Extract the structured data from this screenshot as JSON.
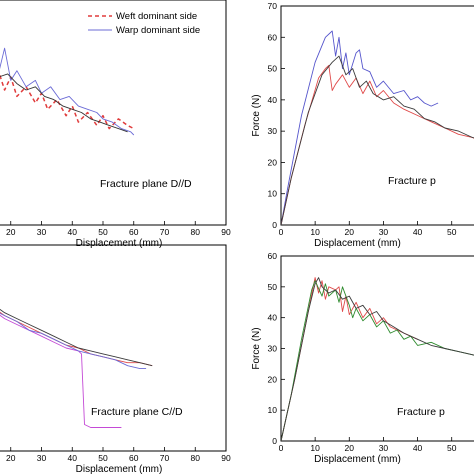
{
  "chart_data": [
    {
      "type": "line",
      "panel": "top-left",
      "annotation": "Fracture plane D//D",
      "xlabel": "Displacement (mm)",
      "ylabel": "",
      "xlim": [
        10,
        90
      ],
      "ylim": [
        0,
        70
      ],
      "x_ticks": [
        "20",
        "30",
        "40",
        "50",
        "60",
        "70",
        "80",
        "90"
      ],
      "y_ticks": [],
      "legend_position": "top-right",
      "series": [
        {
          "name": "Weft dominant side",
          "color": "#e03b3b",
          "dash": "dashed",
          "x": [
            10,
            12,
            14,
            16,
            18,
            20,
            22,
            25,
            28,
            30,
            32,
            35,
            38,
            40,
            42,
            45,
            48,
            50,
            52,
            55,
            58,
            60
          ],
          "y": [
            50,
            47,
            44,
            48,
            42,
            46,
            40,
            43,
            38,
            41,
            36,
            39,
            34,
            37,
            32,
            35,
            31,
            34,
            30,
            33,
            31,
            30
          ]
        },
        {
          "name": "Warp dominant side",
          "color": "#6b6bd6",
          "dash": "solid",
          "x": [
            10,
            12,
            14,
            16,
            18,
            20,
            22,
            25,
            28,
            30,
            33,
            36,
            39,
            42,
            45,
            48,
            50,
            53,
            56,
            59,
            60
          ],
          "y": [
            52,
            49,
            51,
            47,
            55,
            45,
            48,
            43,
            45,
            41,
            43,
            39,
            40,
            37,
            36,
            35,
            33,
            32,
            30,
            29,
            28
          ]
        },
        {
          "name": "",
          "color": "#333333",
          "dash": "solid",
          "x": [
            10,
            13,
            16,
            19,
            22,
            25,
            28,
            31,
            34,
            37,
            40,
            43,
            46,
            49,
            52,
            55,
            58
          ],
          "y": [
            51,
            48,
            46,
            47,
            44,
            42,
            43,
            40,
            39,
            37,
            36,
            35,
            33,
            32,
            31,
            30,
            29
          ]
        }
      ]
    },
    {
      "type": "line",
      "panel": "top-right",
      "annotation": "Fracture p",
      "xlabel": "Displacement (mm)",
      "ylabel": "Force (N)",
      "xlim": [
        0,
        70
      ],
      "ylim": [
        0,
        70
      ],
      "x_ticks": [
        "0",
        "10",
        "20",
        "30",
        "40",
        "50",
        "60"
      ],
      "y_ticks": [
        "0",
        "10",
        "20",
        "30",
        "40",
        "50",
        "60",
        "70"
      ],
      "series": [
        {
          "name": "",
          "color": "#5555cc",
          "x": [
            0,
            2,
            6,
            10,
            13,
            15,
            16,
            17,
            18,
            19,
            20,
            22,
            23,
            24,
            26,
            28,
            30,
            33,
            36,
            38,
            40,
            42,
            44,
            46
          ],
          "y": [
            0,
            12,
            35,
            52,
            60,
            62,
            54,
            60,
            50,
            55,
            48,
            55,
            56,
            50,
            49,
            44,
            46,
            42,
            43,
            40,
            41,
            39,
            38,
            39
          ]
        },
        {
          "name": "",
          "color": "#e04a4a",
          "x": [
            0,
            3,
            7,
            11,
            13,
            14,
            15,
            16,
            18,
            20,
            22,
            24,
            26,
            28,
            30,
            33,
            36,
            40,
            44,
            48,
            52,
            56,
            60
          ],
          "y": [
            0,
            15,
            32,
            47,
            50,
            51,
            43,
            45,
            48,
            44,
            47,
            42,
            46,
            41,
            43,
            39,
            37,
            35,
            33,
            31,
            29,
            28,
            26
          ]
        },
        {
          "name": "",
          "color": "#3c3c3c",
          "x": [
            0,
            3,
            8,
            12,
            15,
            17,
            19,
            21,
            23,
            25,
            27,
            30,
            33,
            36,
            39,
            42,
            45,
            48,
            52,
            56,
            60
          ],
          "y": [
            0,
            15,
            36,
            48,
            52,
            54,
            48,
            50,
            44,
            46,
            42,
            40,
            41,
            38,
            37,
            34,
            33,
            31,
            30,
            28,
            27
          ]
        }
      ]
    },
    {
      "type": "line",
      "panel": "bottom-left",
      "annotation": "Fracture plane C//D",
      "xlabel": "Displacement (mm)",
      "ylabel": "",
      "xlim": [
        10,
        90
      ],
      "ylim": [
        0,
        70
      ],
      "x_ticks": [
        "20",
        "30",
        "40",
        "50",
        "60",
        "70",
        "80",
        "90"
      ],
      "y_ticks": [],
      "series": [
        {
          "name": "",
          "color": "#c44ad6",
          "x": [
            10,
            14,
            18,
            22,
            26,
            30,
            34,
            38,
            42,
            43,
            44,
            46,
            50,
            54,
            56
          ],
          "y": [
            50,
            48,
            45,
            43,
            41,
            39,
            37,
            35,
            34,
            33,
            9,
            8,
            8,
            8,
            8
          ]
        },
        {
          "name": "",
          "color": "#e04a4a",
          "x": [
            10,
            14,
            18,
            22,
            26,
            30,
            34,
            38,
            42,
            46,
            50,
            54,
            58,
            62,
            66
          ],
          "y": [
            51,
            49,
            46,
            44,
            42,
            40,
            38,
            36,
            35,
            33,
            32,
            31,
            30,
            30,
            29
          ]
        },
        {
          "name": "",
          "color": "#3c3c3c",
          "x": [
            10,
            14,
            18,
            22,
            26,
            30,
            34,
            38,
            42,
            46,
            50,
            54,
            58,
            62,
            66
          ],
          "y": [
            52,
            50,
            47,
            45,
            43,
            41,
            39,
            37,
            35,
            34,
            33,
            32,
            31,
            30,
            29
          ]
        },
        {
          "name": "",
          "color": "#6b6bd6",
          "x": [
            10,
            14,
            18,
            22,
            26,
            30,
            34,
            38,
            42,
            46,
            50,
            54,
            58,
            62,
            64
          ],
          "y": [
            49,
            48,
            46,
            44,
            41,
            40,
            38,
            36,
            34,
            33,
            32,
            31,
            29,
            28,
            28
          ]
        }
      ]
    },
    {
      "type": "line",
      "panel": "bottom-right",
      "annotation": "Fracture p",
      "xlabel": "Displacement (mm)",
      "ylabel": "Force (N)",
      "xlim": [
        0,
        70
      ],
      "ylim": [
        0,
        60
      ],
      "x_ticks": [
        "0",
        "10",
        "20",
        "30",
        "40",
        "50",
        "60"
      ],
      "y_ticks": [
        "0",
        "10",
        "20",
        "30",
        "40",
        "50",
        "60"
      ],
      "series": [
        {
          "name": "",
          "color": "#e04a4a",
          "x": [
            0,
            4,
            8,
            10,
            11,
            12,
            13,
            14,
            16,
            17,
            18,
            19,
            20,
            22,
            24,
            26,
            28,
            30,
            32,
            34,
            36,
            38,
            40
          ],
          "y": [
            0,
            20,
            42,
            53,
            48,
            52,
            46,
            50,
            49,
            50,
            42,
            47,
            41,
            45,
            40,
            43,
            38,
            40,
            37,
            36,
            35,
            34,
            33
          ]
        },
        {
          "name": "",
          "color": "#2e8b2e",
          "x": [
            0,
            3,
            6,
            9,
            10,
            12,
            13,
            14,
            16,
            17,
            18,
            20,
            21,
            22,
            24,
            26,
            28,
            30,
            32,
            34,
            36,
            38,
            40,
            44,
            48,
            52,
            56,
            60
          ],
          "y": [
            0,
            15,
            33,
            49,
            52,
            47,
            51,
            47,
            49,
            45,
            50,
            44,
            40,
            43,
            39,
            41,
            37,
            39,
            35,
            36,
            33,
            34,
            31,
            32,
            30,
            29,
            28,
            27
          ]
        },
        {
          "name": "",
          "color": "#3c3c3c",
          "x": [
            0,
            4,
            8,
            10,
            11,
            12,
            14,
            16,
            18,
            20,
            22,
            24,
            26,
            28,
            30,
            33,
            36,
            40,
            44,
            48,
            52,
            56,
            60
          ],
          "y": [
            0,
            20,
            42,
            51,
            53,
            50,
            48,
            49,
            46,
            47,
            43,
            44,
            41,
            42,
            39,
            37,
            35,
            33,
            31,
            30,
            29,
            28,
            27
          ]
        }
      ]
    }
  ]
}
